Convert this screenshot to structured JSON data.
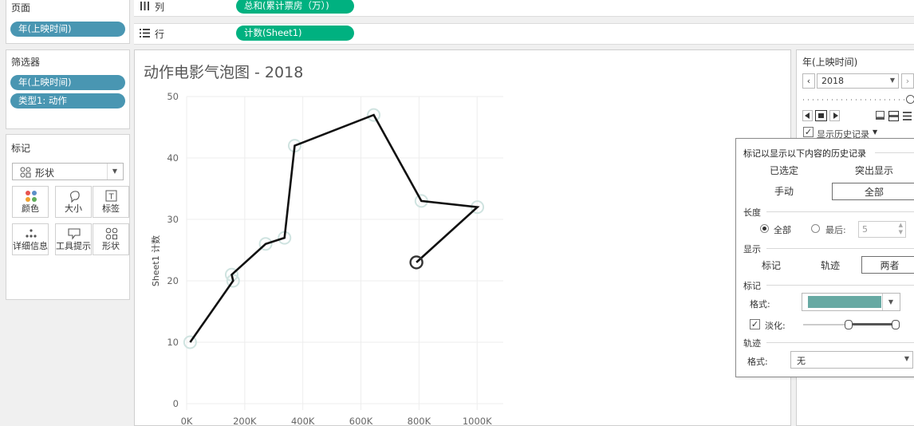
{
  "pages_panel": {
    "title": "页面",
    "pill": "年(上映时间)"
  },
  "filters_panel": {
    "title": "筛选器",
    "pills": [
      "年(上映时间)",
      "类型1: 动作"
    ]
  },
  "marks_panel": {
    "title": "标记",
    "mark_type": "形状",
    "buttons": [
      {
        "label": "颜色",
        "icon": "color-dots-icon"
      },
      {
        "label": "大小",
        "icon": "size-icon"
      },
      {
        "label": "标签",
        "icon": "label-icon"
      },
      {
        "label": "详细信息",
        "icon": "detail-dots-icon"
      },
      {
        "label": "工具提示",
        "icon": "tooltip-icon"
      },
      {
        "label": "形状",
        "icon": "shape-icon"
      }
    ]
  },
  "shelves": {
    "columns": {
      "label": "列",
      "pill": "总和(累计票房（万）)"
    },
    "rows": {
      "label": "行",
      "pill": "计数(Sheet1)"
    }
  },
  "chart_data": {
    "type": "line",
    "title": "动作电影气泡图 - 2018",
    "xlabel": "",
    "ylabel": "Sheet1 计数",
    "x_tick_labels": [
      "0K",
      "200K",
      "400K",
      "600K",
      "800K",
      "1000K"
    ],
    "x_ticks": [
      0,
      200000,
      400000,
      600000,
      800000,
      1000000
    ],
    "y_ticks": [
      0,
      10,
      20,
      30,
      40,
      50
    ],
    "xlim": [
      0,
      1090000
    ],
    "ylim": [
      0,
      50
    ],
    "grid": true,
    "points": [
      {
        "x": 12000,
        "y": 10
      },
      {
        "x": 160000,
        "y": 20
      },
      {
        "x": 155000,
        "y": 21
      },
      {
        "x": 272000,
        "y": 26
      },
      {
        "x": 337000,
        "y": 27
      },
      {
        "x": 372000,
        "y": 42
      },
      {
        "x": 644000,
        "y": 47
      },
      {
        "x": 808000,
        "y": 33
      },
      {
        "x": 1001000,
        "y": 32
      },
      {
        "x": 791000,
        "y": 23
      }
    ],
    "history_markers_color": "#cfe3e0",
    "current_marker_color": "#333333",
    "trail_color": "#111111"
  },
  "page_control": {
    "title": "年(上映时间)",
    "value": "2018",
    "show_history": "显示历史记录"
  },
  "history_popup": {
    "header": "标记以显示以下内容的历史记录",
    "opt_selected": "已选定",
    "opt_highlight": "突出显示",
    "opt_manual": "手动",
    "opt_all": "全部",
    "length_label": "长度",
    "length_all": "全部",
    "length_last": "最后:",
    "length_last_value": "5",
    "show_label": "显示",
    "show_marks": "标记",
    "show_trails": "轨迹",
    "show_both": "两者",
    "marks_label": "标记",
    "format_label": "格式:",
    "marks_color": "#67a9a3",
    "fade_label": "淡化:",
    "trails_label": "轨迹",
    "trails_format_label": "格式:",
    "trails_format_value": "无"
  }
}
